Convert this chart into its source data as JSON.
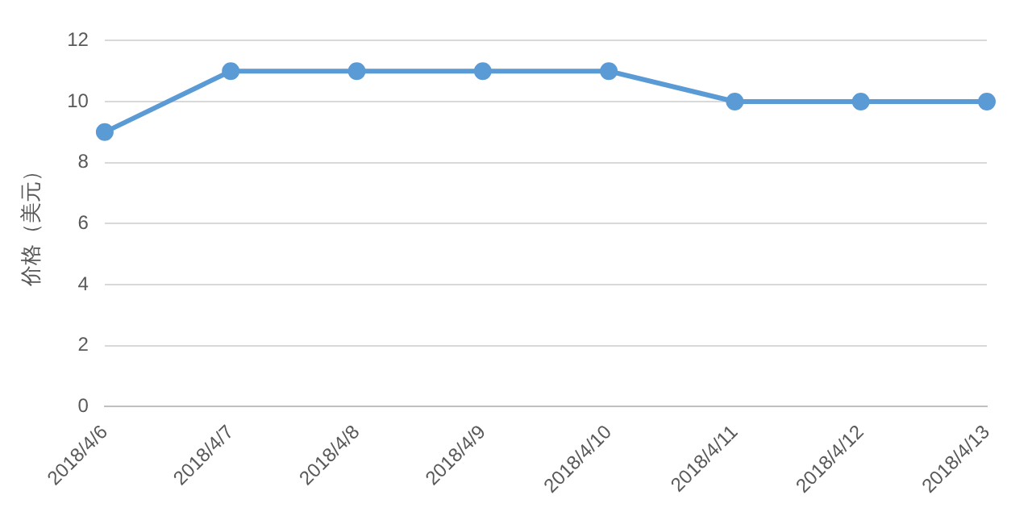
{
  "chart_data": {
    "type": "line",
    "ylabel": "价格（美元）",
    "categories": [
      "2018/4/6",
      "2018/4/7",
      "2018/4/8",
      "2018/4/9",
      "2018/4/10",
      "2018/4/11",
      "2018/4/12",
      "2018/4/13"
    ],
    "series": [
      {
        "color": "#5b9bd5",
        "values": [
          9,
          11,
          11,
          11,
          11,
          10,
          10,
          10
        ]
      }
    ],
    "ylim": [
      0,
      12
    ],
    "yticks": [
      0,
      2,
      4,
      6,
      8,
      10,
      12
    ],
    "grid": "y",
    "marker": "circle",
    "line_style": "solid",
    "legend": false
  }
}
